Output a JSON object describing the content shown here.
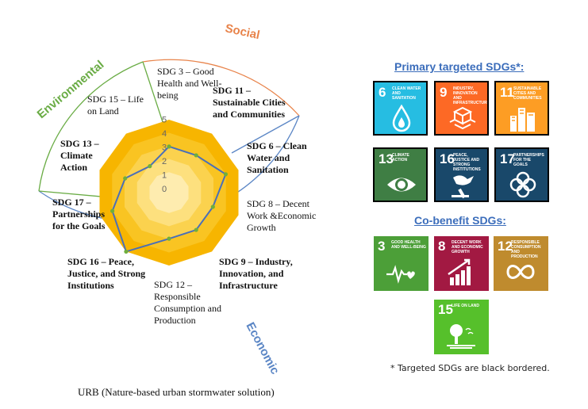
{
  "diagram": {
    "dimensions": {
      "social": "Social",
      "environmental": "Environmental",
      "economic": "Economic"
    },
    "sdg_labels": {
      "sdg3": "SDG 3 – Good Health and Well-being",
      "sdg11": "SDG 11 – Sustainable Cities and Communities",
      "sdg6": "SDG 6 – Clean Water and Sanitation",
      "sdg8": "SDG 8 – Decent Work &Economic Growth",
      "sdg9": "SDG 9 – Industry, Innovation, and Infrastructure",
      "sdg12": "SDG 12 – Responsible Consumption and Production",
      "sdg16": "SDG 16 – Peace, Justice, and Strong Institutions",
      "sdg17": "SDG 17 – Partnerships for the Goals",
      "sdg13": "SDG 13 – Climate Action",
      "sdg15": "SDG 15 – Life on Land"
    },
    "scale_ticks": [
      "0",
      "1",
      "2",
      "3",
      "4",
      "5"
    ],
    "radar": {
      "axes": [
        "SDG 3",
        "SDG 11",
        "SDG 6",
        "SDG 8",
        "SDG 9",
        "SDG 12",
        "SDG 16",
        "SDG 17",
        "SDG 13",
        "SDG 15"
      ],
      "values": [
        3,
        3,
        4,
        3,
        3,
        3,
        5,
        4,
        3,
        2
      ],
      "max": 5,
      "line_color": "#4a6fb8",
      "point_color": "#6fae3c",
      "fill_colors": [
        "#f7b500",
        "#f9c422",
        "#fbd24e",
        "#fde07e",
        "#feecaf"
      ]
    },
    "caption": "URB (Nature-based urban stormwater solution)"
  },
  "panel": {
    "primary_heading": "Primary targeted SDGs*:",
    "cobenefit_heading": "Co-benefit SDGs:",
    "footnote": "* Targeted SDGs are black bordered.",
    "primary_tiles": [
      {
        "num": "6",
        "title": "Clean water and sanitation",
        "color": "#26bde2",
        "icon": "water-drop-icon"
      },
      {
        "num": "9",
        "title": "Industry, innovation and infrastructure",
        "color": "#fd6925",
        "icon": "cubes-icon"
      },
      {
        "num": "11",
        "title": "Sustainable cities and communities",
        "color": "#fd9d24",
        "icon": "city-icon"
      },
      {
        "num": "13",
        "title": "Climate action",
        "color": "#3f7e44",
        "icon": "eye-globe-icon"
      },
      {
        "num": "16",
        "title": "Peace, justice and strong institutions",
        "color": "#19486a",
        "icon": "dove-gavel-icon"
      },
      {
        "num": "17",
        "title": "Partnerships for the goals",
        "color": "#19486a",
        "icon": "rings-icon"
      }
    ],
    "cobenefit_tiles": [
      {
        "num": "3",
        "title": "Good health and well-being",
        "color": "#4c9f38",
        "icon": "heartbeat-icon"
      },
      {
        "num": "8",
        "title": "Decent work and economic growth",
        "color": "#a21942",
        "icon": "growth-chart-icon"
      },
      {
        "num": "12",
        "title": "Responsible consumption and production",
        "color": "#bf8b2e",
        "icon": "infinity-icon"
      },
      {
        "num": "15",
        "title": "Life on land",
        "color": "#56c02b",
        "icon": "tree-icon"
      }
    ]
  }
}
